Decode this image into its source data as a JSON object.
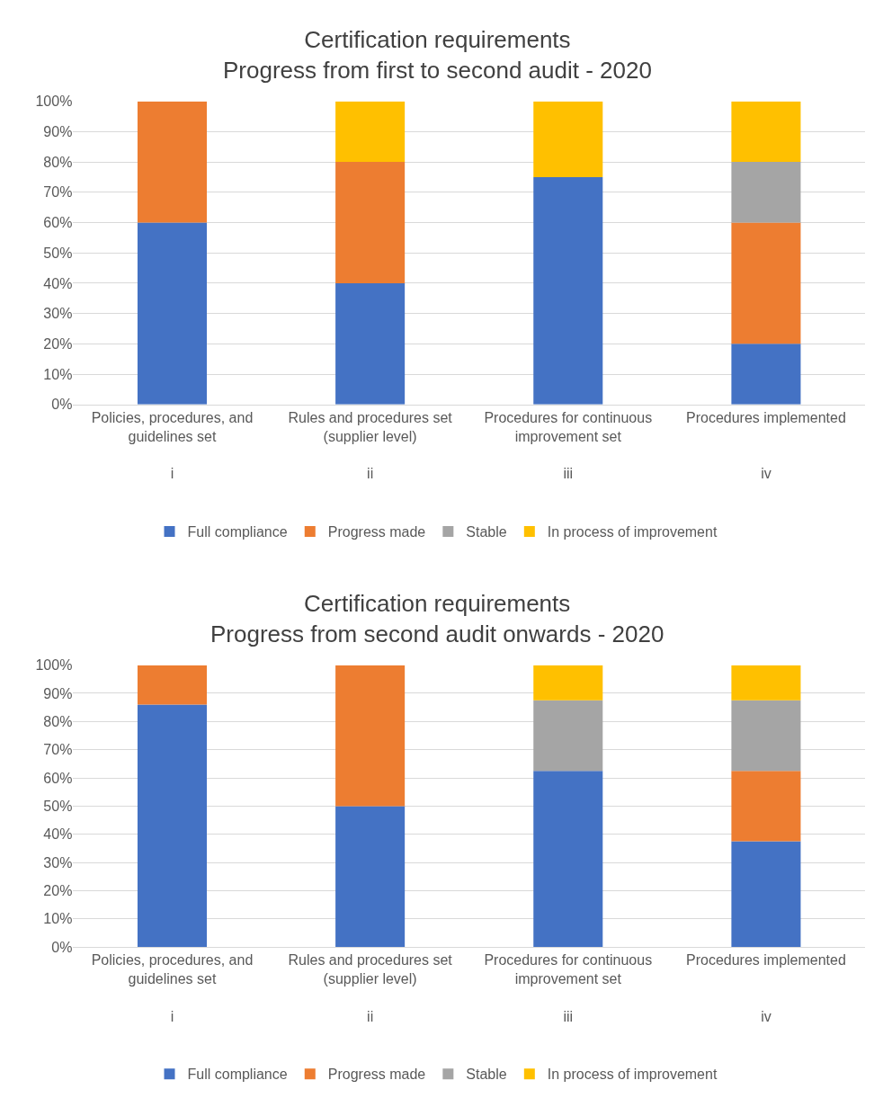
{
  "chart_data": [
    {
      "type": "bar",
      "stacked": true,
      "title": "Certification requirements\nProgress from first to second audit - 2020",
      "categories": [
        "Policies, procedures, and guidelines set\ni",
        "Rules and procedures set (supplier level)\nii",
        "Procedures for continuous improvement set\niii",
        "Procedures implemented\niv"
      ],
      "series": [
        {
          "name": "Full compliance",
          "color": "#4472c4",
          "values": [
            60,
            40,
            75,
            20
          ]
        },
        {
          "name": "Progress made",
          "color": "#ed7d31",
          "values": [
            40,
            40,
            null,
            40
          ]
        },
        {
          "name": "Stable",
          "color": "#a5a5a5",
          "values": [
            null,
            null,
            null,
            20
          ]
        },
        {
          "name": "In process of improvement",
          "color": "#ffc000",
          "values": [
            null,
            20,
            25,
            20
          ]
        }
      ],
      "ylim": [
        0,
        100
      ],
      "yticks": [
        {
          "value": 0,
          "label": "0%"
        },
        {
          "value": 10,
          "label": "10%"
        },
        {
          "value": 20,
          "label": "20%"
        },
        {
          "value": 30,
          "label": "30%"
        },
        {
          "value": 40,
          "label": "40%"
        },
        {
          "value": 50,
          "label": "50%"
        },
        {
          "value": 60,
          "label": "60%"
        },
        {
          "value": 70,
          "label": "70%"
        },
        {
          "value": 80,
          "label": "80%"
        },
        {
          "value": 90,
          "label": "90%"
        },
        {
          "value": 100,
          "label": "100%"
        }
      ],
      "grid": "y",
      "legend": "bottom"
    },
    {
      "type": "bar",
      "stacked": true,
      "title": "Certification requirements\nProgress from second audit onwards - 2020",
      "categories": [
        "Policies, procedures, and guidelines set\ni",
        "Rules and procedures set (supplier level)\nii",
        "Procedures for continuous improvement set\niii",
        "Procedures implemented\niv"
      ],
      "series": [
        {
          "name": "Full compliance",
          "color": "#4472c4",
          "values": [
            86,
            50,
            62.5,
            37.5
          ]
        },
        {
          "name": "Progress made",
          "color": "#ed7d31",
          "values": [
            14,
            50,
            null,
            25
          ]
        },
        {
          "name": "Stable",
          "color": "#a5a5a5",
          "values": [
            null,
            null,
            25,
            25
          ]
        },
        {
          "name": "In process of improvement",
          "color": "#ffc000",
          "values": [
            null,
            null,
            12.5,
            12.5
          ]
        }
      ],
      "ylim": [
        0,
        100
      ],
      "yticks": [
        {
          "value": 0,
          "label": "0%"
        },
        {
          "value": 10,
          "label": "10%"
        },
        {
          "value": 20,
          "label": "20%"
        },
        {
          "value": 30,
          "label": "30%"
        },
        {
          "value": 40,
          "label": "40%"
        },
        {
          "value": 50,
          "label": "50%"
        },
        {
          "value": 60,
          "label": "60%"
        },
        {
          "value": 70,
          "label": "70%"
        },
        {
          "value": 80,
          "label": "80%"
        },
        {
          "value": 90,
          "label": "90%"
        },
        {
          "value": 100,
          "label": "100%"
        }
      ],
      "grid": "y",
      "legend": "bottom"
    }
  ]
}
